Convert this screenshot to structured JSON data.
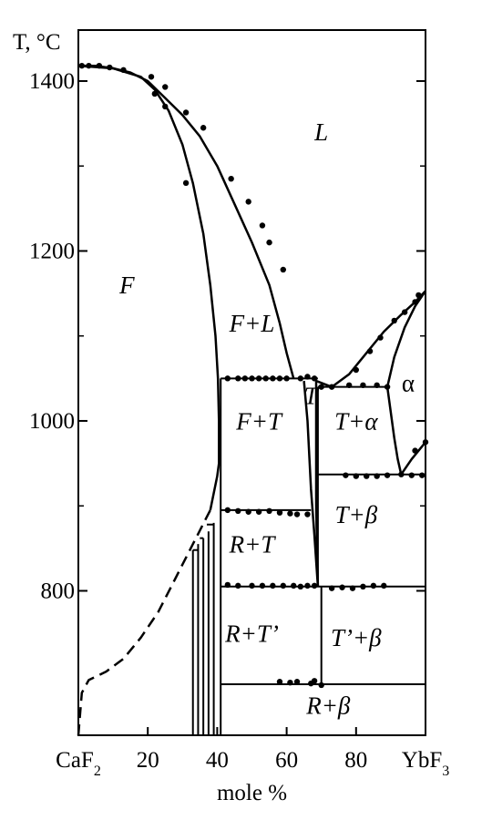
{
  "chart_data": {
    "type": "scatter",
    "chart_kind": "phase diagram",
    "y_axis_title": "T, °C",
    "x_axis_title": "mole %",
    "xlim": [
      0,
      100
    ],
    "ylim": [
      630,
      1460
    ],
    "x_ticks": [
      {
        "value": 0,
        "label": "CaF",
        "sub": "2"
      },
      {
        "value": 20,
        "label": "20",
        "sub": ""
      },
      {
        "value": 40,
        "label": "40",
        "sub": ""
      },
      {
        "value": 60,
        "label": "60",
        "sub": ""
      },
      {
        "value": 80,
        "label": "80",
        "sub": ""
      },
      {
        "value": 100,
        "label": "YbF",
        "sub": "3"
      }
    ],
    "y_ticks": [
      {
        "value": 800,
        "label": "800"
      },
      {
        "value": 1000,
        "label": "1000"
      },
      {
        "value": 1200,
        "label": "1200"
      },
      {
        "value": 1400,
        "label": "1400"
      }
    ],
    "y_minor_ticks": [
      900,
      1100,
      1300
    ],
    "phase_labels": [
      {
        "text": "L",
        "italic": true,
        "x": 70,
        "y": 1330
      },
      {
        "text": "F",
        "italic": true,
        "x": 14,
        "y": 1150
      },
      {
        "text": "F+L",
        "italic": true,
        "x": 50,
        "y": 1105
      },
      {
        "text": "F+T",
        "italic": true,
        "x": 52,
        "y": 990
      },
      {
        "text": "T",
        "italic": true,
        "x": 67,
        "y": 1020,
        "small": true
      },
      {
        "text": "T+α",
        "italic": true,
        "x": 80,
        "y": 990
      },
      {
        "text": "α",
        "italic": false,
        "x": 95,
        "y": 1035
      },
      {
        "text": "R+T",
        "italic": true,
        "x": 50,
        "y": 845
      },
      {
        "text": "T+β",
        "italic": true,
        "x": 80,
        "y": 880
      },
      {
        "text": "R+T’",
        "italic": true,
        "x": 50,
        "y": 740
      },
      {
        "text": "T’+β",
        "italic": true,
        "x": 80,
        "y": 735
      },
      {
        "text": "R+β",
        "italic": true,
        "x": 72,
        "y": 655
      }
    ],
    "curves": [
      {
        "name": "liquidus",
        "style": "solid",
        "points": [
          [
            0,
            1418
          ],
          [
            5,
            1418
          ],
          [
            10,
            1415
          ],
          [
            15,
            1410
          ],
          [
            20,
            1400
          ],
          [
            25,
            1380
          ],
          [
            30,
            1360
          ],
          [
            35,
            1335
          ],
          [
            40,
            1300
          ],
          [
            45,
            1255
          ],
          [
            50,
            1210
          ],
          [
            55,
            1160
          ],
          [
            58,
            1115
          ],
          [
            60,
            1080
          ],
          [
            62,
            1050
          ]
        ]
      },
      {
        "name": "F solidus",
        "style": "solid",
        "points": [
          [
            0,
            1418
          ],
          [
            10,
            1415
          ],
          [
            18,
            1405
          ],
          [
            22,
            1390
          ],
          [
            26,
            1365
          ],
          [
            30,
            1325
          ],
          [
            33,
            1280
          ],
          [
            36,
            1220
          ],
          [
            38,
            1160
          ],
          [
            39.5,
            1100
          ],
          [
            40.2,
            1050
          ],
          [
            40.5,
            1000
          ],
          [
            40.5,
            950
          ],
          [
            40,
            935
          ],
          [
            39,
            915
          ],
          [
            38,
            895
          ]
        ]
      },
      {
        "name": "F boundary (dashed)",
        "style": "dashed",
        "points": [
          [
            0,
            630
          ],
          [
            1,
            680
          ],
          [
            3,
            695
          ],
          [
            8,
            705
          ],
          [
            13,
            720
          ],
          [
            18,
            745
          ],
          [
            23,
            775
          ],
          [
            28,
            815
          ],
          [
            33,
            855
          ],
          [
            38,
            895
          ]
        ]
      },
      {
        "name": "T left boundary",
        "style": "solid",
        "points": [
          [
            65,
            1047
          ],
          [
            66,
            1000
          ],
          [
            67,
            920
          ],
          [
            68,
            865
          ],
          [
            69,
            805
          ]
        ]
      },
      {
        "name": "T right boundary",
        "style": "solid",
        "points": [
          [
            68.5,
            1047
          ],
          [
            68.5,
            1000
          ],
          [
            68.5,
            900
          ],
          [
            69,
            805
          ]
        ]
      },
      {
        "name": "liquidus alpha",
        "style": "solid",
        "points": [
          [
            68.5,
            1047
          ],
          [
            73,
            1040
          ],
          [
            78,
            1055
          ],
          [
            83,
            1080
          ],
          [
            88,
            1105
          ],
          [
            93,
            1125
          ],
          [
            97,
            1140
          ],
          [
            100,
            1153
          ]
        ]
      },
      {
        "name": "alpha solvus left",
        "style": "solid",
        "points": [
          [
            89,
            1040
          ],
          [
            90,
            1010
          ],
          [
            91,
            980
          ],
          [
            92,
            955
          ],
          [
            93,
            937
          ]
        ]
      },
      {
        "name": "alpha solidus",
        "style": "solid",
        "points": [
          [
            89,
            1040
          ],
          [
            91,
            1075
          ],
          [
            94,
            1110
          ],
          [
            97,
            1135
          ],
          [
            100,
            1153
          ]
        ]
      },
      {
        "name": "alpha-beta",
        "style": "solid",
        "points": [
          [
            93,
            937
          ],
          [
            96,
            955
          ],
          [
            100,
            975
          ]
        ]
      }
    ],
    "horizontal_lines": [
      {
        "y": 1050,
        "x1": 41,
        "x2": 69
      },
      {
        "y": 1040,
        "x1": 69,
        "x2": 89
      },
      {
        "y": 937,
        "x1": 69,
        "x2": 100
      },
      {
        "y": 895,
        "x1": 41,
        "x2": 67
      },
      {
        "y": 805,
        "x1": 41,
        "x2": 100
      },
      {
        "y": 690,
        "x1": 41,
        "x2": 100
      }
    ],
    "vertical_lines": [
      {
        "x": 41,
        "y1": 630,
        "y2": 1050
      },
      {
        "x": 69,
        "y1": 805,
        "y2": 1040
      },
      {
        "x": 70,
        "y1": 690,
        "y2": 805
      },
      {
        "x": 33,
        "y1": 630,
        "y2": 848
      },
      {
        "x": 34.5,
        "y1": 630,
        "y2": 855
      },
      {
        "x": 36,
        "y1": 630,
        "y2": 862
      },
      {
        "x": 37.5,
        "y1": 630,
        "y2": 870
      },
      {
        "x": 39,
        "y1": 630,
        "y2": 880
      }
    ],
    "step_lines": [
      {
        "y": 848,
        "x1": 33,
        "x2": 34.5
      },
      {
        "y": 862,
        "x1": 35,
        "x2": 36
      },
      {
        "y": 878,
        "x1": 37,
        "x2": 39
      }
    ],
    "data_points": [
      [
        1,
        1418
      ],
      [
        3,
        1418
      ],
      [
        6,
        1418
      ],
      [
        9,
        1416
      ],
      [
        13,
        1413
      ],
      [
        21,
        1405
      ],
      [
        25,
        1393
      ],
      [
        31,
        1363
      ],
      [
        36,
        1345
      ],
      [
        44,
        1285
      ],
      [
        49,
        1258
      ],
      [
        53,
        1230
      ],
      [
        55,
        1210
      ],
      [
        59,
        1178
      ],
      [
        22,
        1385
      ],
      [
        25,
        1370
      ],
      [
        31,
        1280
      ],
      [
        43,
        1050
      ],
      [
        46,
        1050
      ],
      [
        48,
        1050
      ],
      [
        50,
        1050
      ],
      [
        52,
        1050
      ],
      [
        54,
        1050
      ],
      [
        56,
        1050
      ],
      [
        58,
        1050
      ],
      [
        60,
        1050
      ],
      [
        64,
        1050
      ],
      [
        66,
        1052
      ],
      [
        68,
        1050
      ],
      [
        70,
        1040
      ],
      [
        73,
        1040
      ],
      [
        78,
        1042
      ],
      [
        82,
        1042
      ],
      [
        86,
        1042
      ],
      [
        89,
        1040
      ],
      [
        80,
        1060
      ],
      [
        84,
        1082
      ],
      [
        87,
        1098
      ],
      [
        91,
        1118
      ],
      [
        94,
        1128
      ],
      [
        97,
        1140
      ],
      [
        98,
        1148
      ],
      [
        77,
        936
      ],
      [
        80,
        935
      ],
      [
        83,
        935
      ],
      [
        86,
        935
      ],
      [
        89,
        936
      ],
      [
        93,
        937
      ],
      [
        96,
        936
      ],
      [
        99,
        936
      ],
      [
        97,
        965
      ],
      [
        100,
        975
      ],
      [
        43,
        895
      ],
      [
        46,
        894
      ],
      [
        49,
        893
      ],
      [
        52,
        893
      ],
      [
        55,
        894
      ],
      [
        58,
        892
      ],
      [
        61,
        891
      ],
      [
        63,
        890
      ],
      [
        66,
        890
      ],
      [
        43,
        807
      ],
      [
        46,
        806
      ],
      [
        50,
        806
      ],
      [
        53,
        806
      ],
      [
        56,
        806
      ],
      [
        59,
        806
      ],
      [
        62,
        806
      ],
      [
        64,
        805
      ],
      [
        66,
        806
      ],
      [
        68,
        806
      ],
      [
        73,
        803
      ],
      [
        76,
        804
      ],
      [
        79,
        803
      ],
      [
        82,
        805
      ],
      [
        85,
        806
      ],
      [
        88,
        806
      ],
      [
        58,
        693
      ],
      [
        61,
        692
      ],
      [
        63,
        693
      ],
      [
        67,
        691
      ],
      [
        68,
        694
      ],
      [
        70,
        689
      ]
    ]
  }
}
